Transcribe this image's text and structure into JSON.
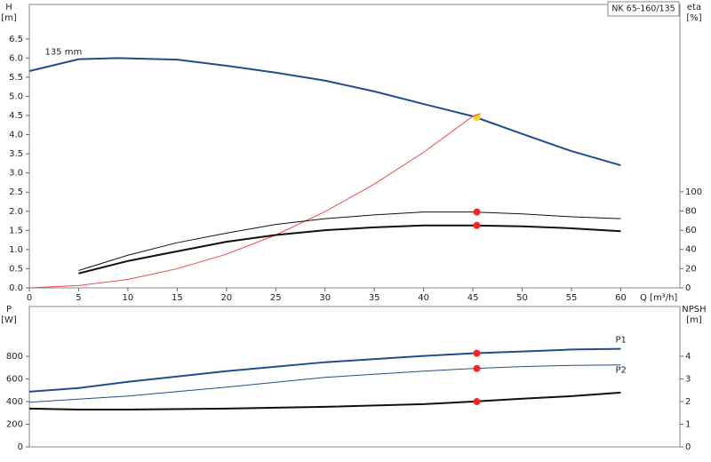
{
  "chart_data": [
    {
      "type": "line",
      "title": "NK 65-160/135",
      "ylabel": [
        "H",
        "[m]"
      ],
      "y2label": [
        "eta",
        "[%]"
      ],
      "xlabel": "Q [m³/h]",
      "xlim": [
        0,
        66
      ],
      "xticks": [
        0,
        5,
        10,
        15,
        20,
        25,
        30,
        35,
        40,
        45,
        50,
        55,
        60
      ],
      "ylim": [
        0,
        7.4
      ],
      "yticks": [
        {
          "value": 0,
          "label": "0.0"
        },
        0.5,
        {
          "value": 1,
          "label": "1.0"
        },
        1.5,
        {
          "value": 2,
          "label": "2.0"
        },
        2.5,
        {
          "value": 3,
          "label": "3.0"
        },
        3.5,
        {
          "value": 4,
          "label": "4.0"
        },
        4.5,
        {
          "value": 5,
          "label": "5.0"
        },
        5.5,
        {
          "value": 6,
          "label": "6.0"
        },
        6.5
      ],
      "y2lim": [
        0,
        295
      ],
      "y2ticks": [
        0,
        20,
        40,
        60,
        80,
        100
      ],
      "series": [
        {
          "name": "135 mm",
          "color": "#1f4e8c",
          "line_width": 2,
          "x": [
            0,
            5,
            9,
            15,
            20,
            25,
            30,
            35,
            40,
            45,
            50,
            55,
            60
          ],
          "values": [
            5.66,
            5.97,
            6.0,
            5.96,
            5.8,
            5.62,
            5.41,
            5.13,
            4.8,
            4.48,
            4.02,
            3.57,
            3.2
          ],
          "marker": {
            "x": 45.4,
            "value": 4.45,
            "color": "#ffd21f"
          }
        },
        {
          "color": "#f04848",
          "line_width": 1,
          "x": [
            0,
            5,
            10,
            15,
            20,
            25,
            30,
            35,
            40,
            45,
            45.8
          ],
          "values": [
            0,
            0.06,
            0.22,
            0.5,
            0.88,
            1.38,
            1.99,
            2.71,
            3.54,
            4.48,
            4.55
          ]
        },
        {
          "color": "#111111",
          "line_width": 1,
          "axis": "y2",
          "x": [
            5,
            10,
            15,
            20,
            25,
            30,
            35,
            40,
            45,
            50,
            55,
            60
          ],
          "values": [
            18,
            34,
            47,
            57,
            66,
            72,
            76,
            79,
            79,
            77,
            74,
            72
          ],
          "marker": {
            "x": 45.4,
            "value": 79,
            "color": "#ff2020"
          }
        },
        {
          "color": "#111111",
          "line_width": 2,
          "axis": "y2",
          "x": [
            5,
            10,
            15,
            20,
            25,
            30,
            35,
            40,
            45,
            50,
            55,
            60
          ],
          "values": [
            15,
            28,
            38,
            48,
            55,
            60,
            63,
            65,
            65,
            64,
            62,
            59
          ],
          "marker": {
            "x": 45.4,
            "value": 65,
            "color": "#ff2020"
          }
        }
      ]
    },
    {
      "type": "line",
      "ylabel": [
        "P",
        "[W]"
      ],
      "y2label": [
        "NPSH",
        "[m]"
      ],
      "xlim": [
        0,
        66
      ],
      "ylim": [
        0,
        1240
      ],
      "yticks": [
        0,
        200,
        400,
        600,
        800
      ],
      "y2lim": [
        0,
        6.2
      ],
      "y2ticks": [
        0,
        1,
        2,
        3,
        4
      ],
      "series": [
        {
          "name": "P1",
          "color": "#1f4e8c",
          "line_width": 2,
          "x": [
            0,
            5,
            10,
            20,
            30,
            40,
            45,
            50,
            55,
            60
          ],
          "values": [
            488,
            520,
            575,
            669,
            748,
            803,
            827,
            843,
            860,
            866
          ],
          "marker": {
            "x": 45.4,
            "value": 827,
            "color": "#ff2020"
          }
        },
        {
          "name": "P2",
          "color": "#1f4e8c",
          "line_width": 1,
          "x": [
            0,
            10,
            20,
            30,
            40,
            45,
            50,
            55,
            60
          ],
          "values": [
            394,
            449,
            528,
            614,
            669,
            693,
            709,
            720,
            724
          ],
          "marker": {
            "x": 45.4,
            "value": 693,
            "color": "#ff2020"
          }
        },
        {
          "color": "#111111",
          "line_width": 2,
          "axis": "y2",
          "x": [
            0,
            5,
            10,
            20,
            30,
            40,
            45,
            50,
            55,
            60
          ],
          "values": [
            1.69,
            1.65,
            1.65,
            1.69,
            1.77,
            1.89,
            2.0,
            2.13,
            2.24,
            2.4
          ],
          "marker": {
            "x": 45.4,
            "value": 2.0,
            "color": "#ff2020"
          }
        }
      ]
    }
  ]
}
